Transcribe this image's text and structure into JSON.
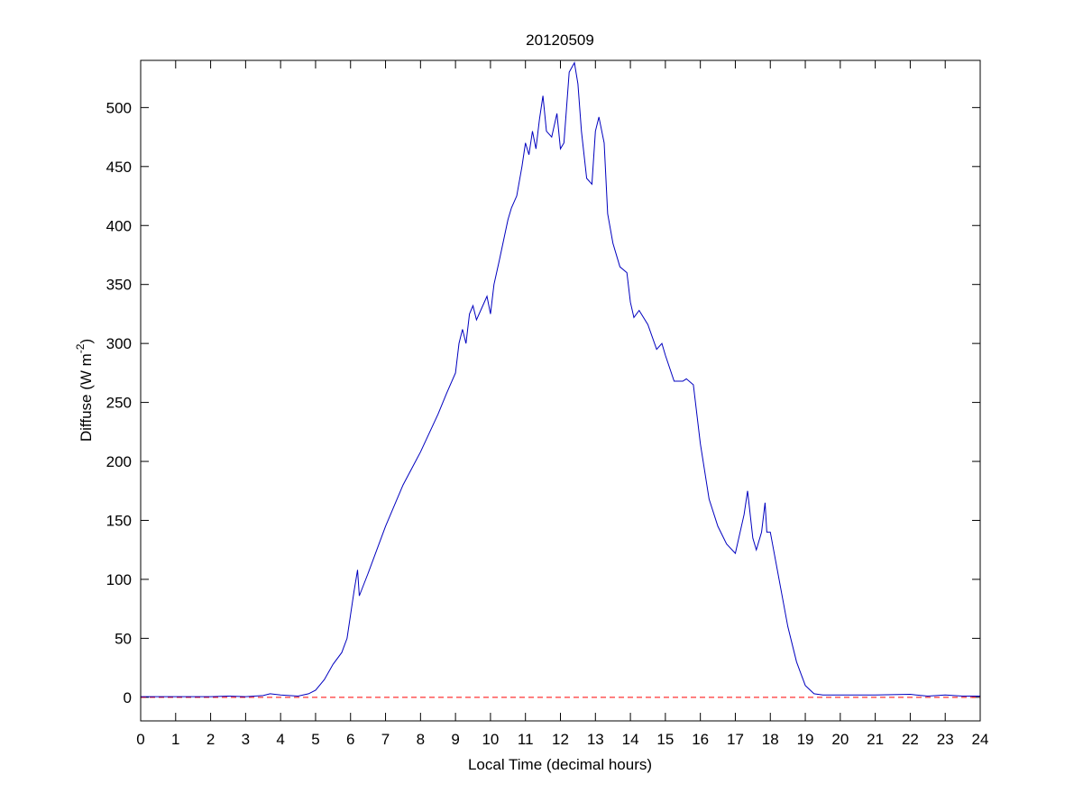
{
  "chart_data": {
    "type": "line",
    "title": "20120509",
    "xlabel": "Local Time (decimal hours)",
    "ylabel": [
      "Diffuse (W m",
      "-2",
      ")"
    ],
    "xlim": [
      0,
      24
    ],
    "ylim": [
      -20,
      540
    ],
    "xticks": [
      0,
      1,
      2,
      3,
      4,
      5,
      6,
      7,
      8,
      9,
      10,
      11,
      12,
      13,
      14,
      15,
      16,
      17,
      18,
      19,
      20,
      21,
      22,
      23,
      24
    ],
    "yticks": [
      0,
      50,
      100,
      150,
      200,
      250,
      300,
      350,
      400,
      450,
      500
    ],
    "reference_line": {
      "value": 0,
      "color": "#ff0000",
      "style": "dashed"
    },
    "series": [
      {
        "color": "#0000bf",
        "x": [
          0,
          1,
          2,
          2.5,
          3,
          3.5,
          3.7,
          4,
          4.5,
          4.8,
          5,
          5.25,
          5.5,
          5.75,
          5.9,
          6,
          6.1,
          6.2,
          6.25,
          6.5,
          7,
          7.5,
          8,
          8.5,
          8.75,
          9,
          9.1,
          9.2,
          9.3,
          9.4,
          9.5,
          9.6,
          9.75,
          9.9,
          10,
          10.1,
          10.25,
          10.5,
          10.6,
          10.75,
          10.9,
          11,
          11.1,
          11.2,
          11.3,
          11.4,
          11.5,
          11.6,
          11.75,
          11.9,
          12,
          12.1,
          12.25,
          12.4,
          12.5,
          12.6,
          12.75,
          12.9,
          13,
          13.1,
          13.25,
          13.35,
          13.5,
          13.7,
          13.9,
          14,
          14.1,
          14.25,
          14.5,
          14.75,
          14.9,
          15,
          15.25,
          15.5,
          15.6,
          15.8,
          16,
          16.25,
          16.5,
          16.75,
          17,
          17.25,
          17.35,
          17.5,
          17.6,
          17.75,
          17.85,
          17.9,
          18,
          18.25,
          18.5,
          18.75,
          19,
          19.25,
          19.5,
          20,
          21,
          22,
          22.5,
          23,
          23.5,
          24
        ],
        "values": [
          0.5,
          0.5,
          0.5,
          1,
          0.5,
          1.5,
          3,
          2,
          1,
          3,
          6,
          15,
          28,
          38,
          50,
          70,
          90,
          108,
          86,
          105,
          145,
          180,
          208,
          240,
          258,
          275,
          300,
          312,
          300,
          325,
          332,
          320,
          330,
          340,
          325,
          350,
          370,
          405,
          415,
          425,
          450,
          470,
          460,
          480,
          465,
          490,
          510,
          480,
          475,
          495,
          465,
          470,
          530,
          538,
          520,
          480,
          440,
          435,
          480,
          492,
          470,
          410,
          385,
          365,
          360,
          335,
          322,
          328,
          316,
          295,
          300,
          290,
          268,
          268,
          270,
          265,
          215,
          168,
          145,
          130,
          122,
          155,
          175,
          135,
          125,
          140,
          165,
          140,
          140,
          100,
          60,
          30,
          10,
          3,
          2,
          2,
          2,
          2.5,
          1,
          2,
          1,
          1
        ]
      }
    ]
  }
}
